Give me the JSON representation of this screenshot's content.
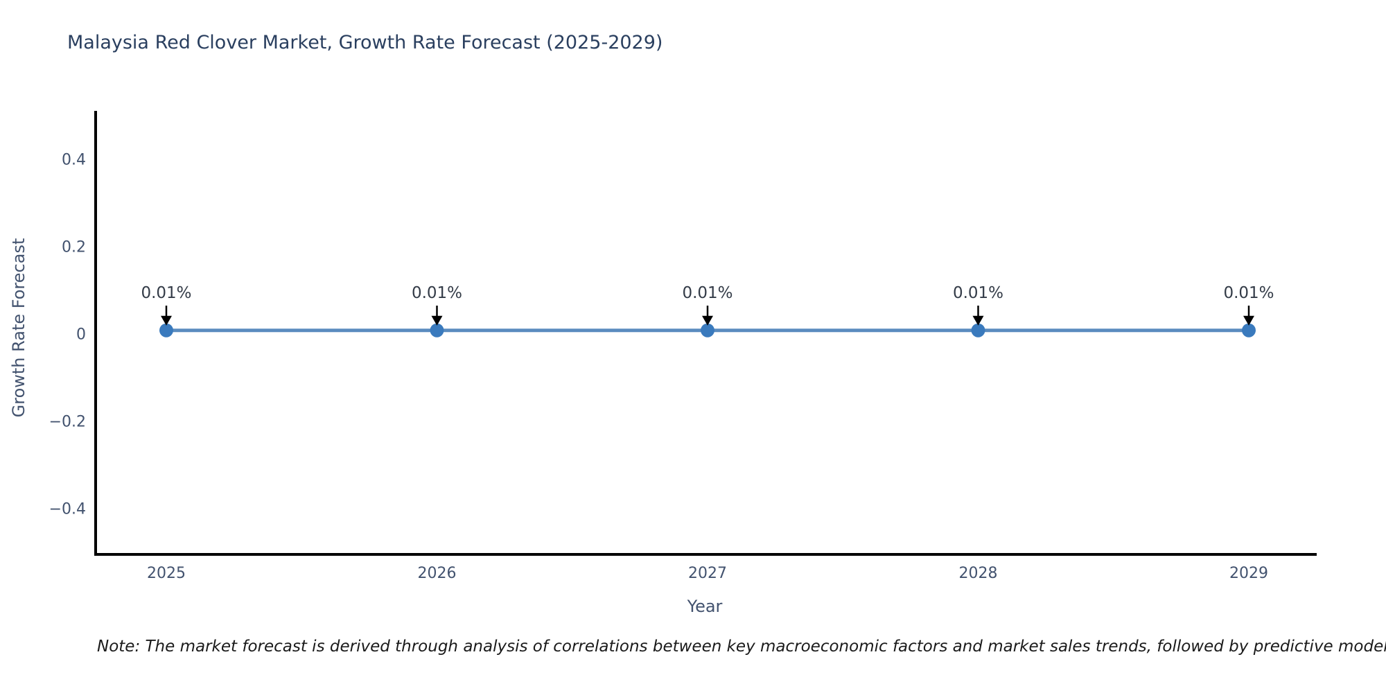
{
  "figure": {
    "note": "Note: The market forecast is derived through analysis of correlations between key macroeconomic factors and market sales trends, followed by predictive modeling to project future sa"
  },
  "chart_data": {
    "type": "line",
    "title": "Malaysia Red Clover Market, Growth Rate Forecast (2025-2029)",
    "xlabel": "Year",
    "ylabel": "Growth Rate Forecast",
    "categories": [
      "2025",
      "2026",
      "2027",
      "2028",
      "2029"
    ],
    "series": [
      {
        "name": "Growth Rate Forecast",
        "values": [
          0.01,
          0.01,
          0.01,
          0.01,
          0.01
        ]
      }
    ],
    "point_labels": [
      "0.01%",
      "0.01%",
      "0.01%",
      "0.01%",
      "0.01%"
    ],
    "yticks": {
      "values": [
        0.4,
        0.2,
        0,
        -0.2,
        -0.4
      ],
      "labels": [
        "0.4",
        "0.2",
        "0",
        "−0.2",
        "−0.4"
      ]
    },
    "ylim": [
      -0.5,
      0.51
    ],
    "grid": false,
    "legend": "none",
    "annotation_style": "down-arrow-to-point",
    "colors": {
      "line": "#5a8cbf",
      "marker": "#3a7abd",
      "axis_line": "#000000",
      "title_text": "#2a3f5f",
      "tick_text": "#42526e",
      "axis_title_text": "#42526e",
      "annotation_text": "#333b47",
      "annotation_arrow": "#000000",
      "note_text": "#1a1a1a",
      "background": "#ffffff"
    }
  }
}
